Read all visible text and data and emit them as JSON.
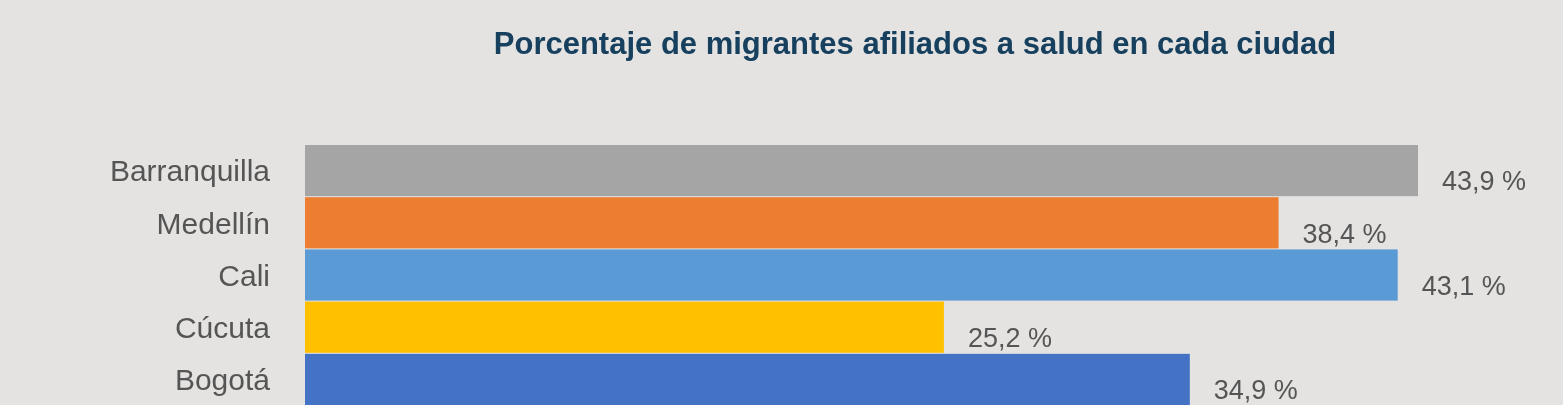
{
  "chart_data": {
    "type": "bar",
    "orientation": "horizontal",
    "title": "Porcentaje de migrantes afiliados a salud en cada ciudad",
    "categories": [
      "Barranquilla",
      "Medellín",
      "Cali",
      "Cúcuta",
      "Bogotá"
    ],
    "values": [
      43.9,
      38.4,
      43.1,
      25.2,
      34.9
    ],
    "colors": [
      "#a5a5a5",
      "#ed7d31",
      "#5b9bd5",
      "#ffc000",
      "#4472c4"
    ],
    "value_labels": [
      "43,9 %",
      "38,4 %",
      "43,1 %",
      "25,2 %",
      "34,9 %"
    ]
  }
}
